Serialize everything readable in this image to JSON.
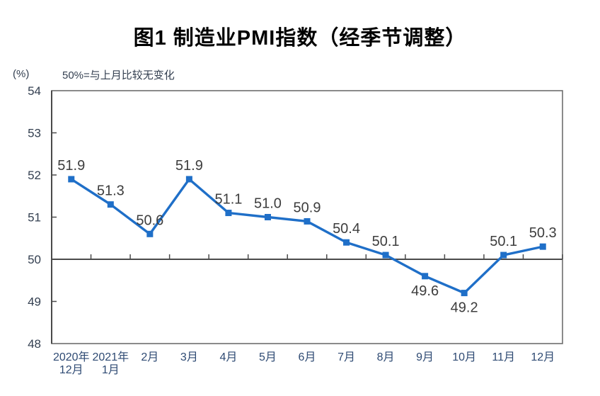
{
  "header": {
    "title": "图1 制造业PMI指数（经季节调整）"
  },
  "axis_notes": {
    "unit": "(%)",
    "reference_note": "50%=与上月比较无变化"
  },
  "chart_data": {
    "type": "line",
    "title": "图1 制造业PMI指数（经季节调整）",
    "unit": "(%)",
    "note": "50%=与上月比较无变化",
    "x_categories": [
      [
        "2020年",
        "12月"
      ],
      [
        "2021年",
        "1月"
      ],
      [
        "2月"
      ],
      [
        "3月"
      ],
      [
        "4月"
      ],
      [
        "5月"
      ],
      [
        "6月"
      ],
      [
        "7月"
      ],
      [
        "8月"
      ],
      [
        "9月"
      ],
      [
        "10月"
      ],
      [
        "11月"
      ],
      [
        "12月"
      ]
    ],
    "values": [
      51.9,
      51.3,
      50.6,
      51.9,
      51.1,
      51.0,
      50.9,
      50.4,
      50.1,
      49.6,
      49.2,
      50.1,
      50.3
    ],
    "data_labels": [
      "51.9",
      "51.3",
      "50.6",
      "51.9",
      "51.1",
      "51.0",
      "50.9",
      "50.4",
      "50.1",
      "49.6",
      "49.2",
      "50.1",
      "50.3"
    ],
    "label_positions": [
      "above",
      "above",
      "above",
      "above",
      "above",
      "above",
      "above",
      "above",
      "above",
      "below",
      "below",
      "above",
      "above"
    ],
    "ylim": [
      48,
      54
    ],
    "y_ticks": [
      48,
      49,
      50,
      51,
      52,
      53,
      54
    ],
    "y_tick_labels": [
      "48",
      "49",
      "50",
      "51",
      "52",
      "53",
      "54"
    ],
    "reference_line": 50,
    "grid": false,
    "legend": "none",
    "marker": "square",
    "colors": {
      "line": "#1f6fc8",
      "marker": "#1f6fc8",
      "data_label": "#3d3d3d",
      "axis_line": "#4a4a4a",
      "frame": "#6e6e6e",
      "axis_text": "#333f50",
      "month_text": "#2e4a73",
      "title": "#000000",
      "background": "#ffffff"
    }
  }
}
